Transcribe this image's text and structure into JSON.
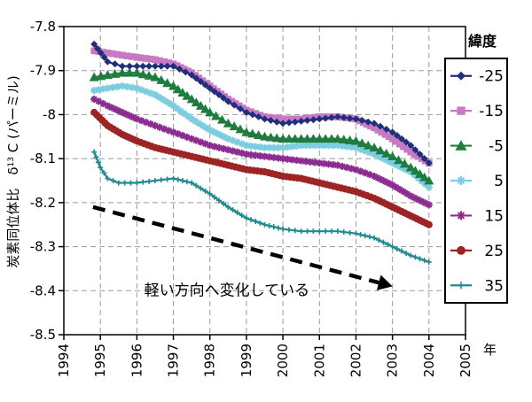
{
  "chart_data": {
    "type": "line",
    "xlabel": "年",
    "ylabel": "炭素同位体比　δ13 C (パーミル)",
    "ylabel_parts": {
      "prefix": "炭素同位体比　δ",
      "sup": "13",
      "suffix": " C (パーミル)"
    },
    "xlim": [
      1994,
      2005
    ],
    "ylim": [
      -8.5,
      -7.8
    ],
    "x_ticks": [
      "1994",
      "1995",
      "1996",
      "1997",
      "1998",
      "1999",
      "2000",
      "2001",
      "2002",
      "2003",
      "2004",
      "2005"
    ],
    "y_ticks": [
      "-7.8",
      "-7.9",
      "-8",
      "-8.1",
      "-8.2",
      "-8.3",
      "-8.4",
      "-8.5"
    ],
    "grid": true,
    "legend": {
      "title": "緯度",
      "position": "right"
    },
    "annotation": {
      "text": "軽い方向へ変化している",
      "arrow_from": [
        1994.8,
        -8.21
      ],
      "arrow_to": [
        2003.0,
        -8.39
      ]
    },
    "series": [
      {
        "name": "-25",
        "color": "#1f2f7a",
        "marker": "diamond",
        "x": [
          1994.83,
          1995.2,
          1995.6,
          1996.0,
          1996.5,
          1997.0,
          1997.5,
          1998.0,
          1998.5,
          1999.0,
          1999.5,
          2000.0,
          2000.5,
          2001.0,
          2001.5,
          2002.0,
          2002.5,
          2003.0,
          2003.5,
          2004.0
        ],
        "y": [
          -7.84,
          -7.88,
          -7.89,
          -7.89,
          -7.89,
          -7.89,
          -7.91,
          -7.94,
          -7.97,
          -7.995,
          -8.01,
          -8.02,
          -8.015,
          -8.01,
          -8.005,
          -8.01,
          -8.02,
          -8.04,
          -8.07,
          -8.11
        ]
      },
      {
        "name": "-15",
        "color": "#c879c6",
        "marker": "square",
        "x": [
          1994.83,
          1995.2,
          1995.6,
          1996.0,
          1996.5,
          1997.0,
          1997.5,
          1998.0,
          1998.5,
          1999.0,
          1999.5,
          2000.0,
          2000.5,
          2001.0,
          2001.5,
          2002.0,
          2002.5,
          2003.0,
          2003.5,
          2004.0
        ],
        "y": [
          -7.855,
          -7.86,
          -7.865,
          -7.87,
          -7.875,
          -7.885,
          -7.905,
          -7.935,
          -7.965,
          -7.99,
          -8.005,
          -8.01,
          -8.01,
          -8.005,
          -8.005,
          -8.01,
          -8.03,
          -8.055,
          -8.085,
          -8.11
        ]
      },
      {
        "name": "-5",
        "color": "#1e7d3e",
        "marker": "triangle",
        "x": [
          1994.83,
          1995.2,
          1995.6,
          1996.0,
          1996.5,
          1997.0,
          1997.5,
          1998.0,
          1998.5,
          1999.0,
          1999.5,
          2000.0,
          2000.5,
          2001.0,
          2001.5,
          2002.0,
          2002.5,
          2003.0,
          2003.5,
          2004.0
        ],
        "y": [
          -7.915,
          -7.91,
          -7.905,
          -7.905,
          -7.915,
          -7.935,
          -7.965,
          -7.995,
          -8.02,
          -8.04,
          -8.05,
          -8.055,
          -8.055,
          -8.055,
          -8.055,
          -8.06,
          -8.075,
          -8.095,
          -8.12,
          -8.15
        ]
      },
      {
        "name": "5",
        "color": "#7ccde0",
        "marker": "star",
        "x": [
          1994.83,
          1995.2,
          1995.6,
          1996.0,
          1996.5,
          1997.0,
          1997.5,
          1998.0,
          1998.5,
          1999.0,
          1999.5,
          2000.0,
          2000.5,
          2001.0,
          2001.5,
          2002.0,
          2002.5,
          2003.0,
          2003.5,
          2004.0
        ],
        "y": [
          -7.945,
          -7.94,
          -7.935,
          -7.94,
          -7.955,
          -7.98,
          -8.01,
          -8.035,
          -8.055,
          -8.07,
          -8.075,
          -8.075,
          -8.07,
          -8.07,
          -8.07,
          -8.075,
          -8.09,
          -8.11,
          -8.13,
          -8.165
        ]
      },
      {
        "name": "15",
        "color": "#8b2c91",
        "marker": "star",
        "x": [
          1994.83,
          1995.2,
          1995.6,
          1996.0,
          1996.5,
          1997.0,
          1997.5,
          1998.0,
          1998.5,
          1999.0,
          1999.5,
          2000.0,
          2000.5,
          2001.0,
          2001.5,
          2002.0,
          2002.5,
          2003.0,
          2003.5,
          2004.0
        ],
        "y": [
          -7.965,
          -7.98,
          -7.995,
          -8.01,
          -8.025,
          -8.04,
          -8.055,
          -8.07,
          -8.08,
          -8.09,
          -8.095,
          -8.1,
          -8.105,
          -8.11,
          -8.115,
          -8.125,
          -8.14,
          -8.16,
          -8.185,
          -8.205
        ]
      },
      {
        "name": "25",
        "color": "#9c2424",
        "marker": "circle",
        "x": [
          1994.83,
          1995.2,
          1995.6,
          1996.0,
          1996.5,
          1997.0,
          1997.5,
          1998.0,
          1998.5,
          1999.0,
          1999.5,
          2000.0,
          2000.5,
          2001.0,
          2001.5,
          2002.0,
          2002.5,
          2003.0,
          2003.5,
          2004.0
        ],
        "y": [
          -7.995,
          -8.025,
          -8.045,
          -8.06,
          -8.075,
          -8.085,
          -8.095,
          -8.105,
          -8.115,
          -8.125,
          -8.13,
          -8.14,
          -8.145,
          -8.155,
          -8.165,
          -8.175,
          -8.19,
          -8.21,
          -8.23,
          -8.25
        ]
      },
      {
        "name": "35",
        "color": "#1f8a8e",
        "marker": "plus",
        "x": [
          1994.83,
          1995.0,
          1995.2,
          1995.5,
          1996.0,
          1996.5,
          1997.0,
          1997.5,
          1998.0,
          1998.5,
          1999.0,
          1999.5,
          2000.0,
          2000.5,
          2001.0,
          2001.5,
          2002.0,
          2002.5,
          2003.0,
          2003.5,
          2004.0
        ],
        "y": [
          -8.085,
          -8.12,
          -8.145,
          -8.155,
          -8.155,
          -8.15,
          -8.145,
          -8.155,
          -8.18,
          -8.21,
          -8.235,
          -8.25,
          -8.26,
          -8.265,
          -8.265,
          -8.265,
          -8.27,
          -8.28,
          -8.3,
          -8.32,
          -8.335
        ]
      }
    ]
  }
}
